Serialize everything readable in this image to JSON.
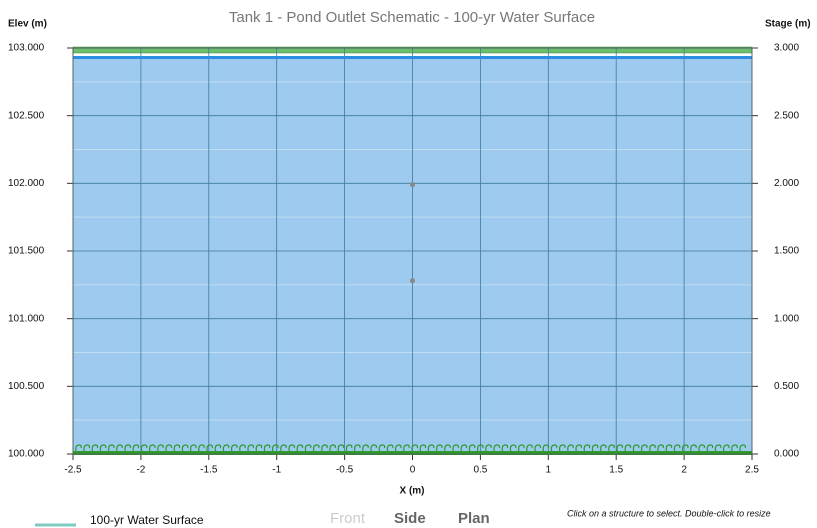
{
  "chart_data": {
    "type": "schematic",
    "title": "Tank 1 - Pond Outlet Schematic - 100-yr Water Surface",
    "ylabel": "Elev (m)",
    "y2label": "Stage (m)",
    "xlabel": "X (m)",
    "xlim": [
      -2.5,
      2.5
    ],
    "xticks": [
      -2.5,
      -2,
      -1.5,
      -1,
      -0.5,
      0,
      0.5,
      1,
      1.5,
      2,
      2.5
    ],
    "ylim": [
      100,
      103
    ],
    "yticks": [
      {
        "value": 100,
        "label": "100.000"
      },
      {
        "value": 100.5,
        "label": "100.500"
      },
      {
        "value": 101,
        "label": "101.000"
      },
      {
        "value": 101.5,
        "label": "101.500"
      },
      {
        "value": 102,
        "label": "102.000"
      },
      {
        "value": 102.5,
        "label": "102.500"
      },
      {
        "value": 103,
        "label": "103.000"
      }
    ],
    "y_minor_ticks": [
      100.25,
      100.75,
      101.25,
      101.75,
      102.25,
      102.75
    ],
    "y2lim": [
      0,
      3
    ],
    "y2ticks": [
      {
        "value": 0,
        "label": "0.000"
      },
      {
        "value": 0.5,
        "label": "0.500"
      },
      {
        "value": 1,
        "label": "1.000"
      },
      {
        "value": 1.5,
        "label": "1.500"
      },
      {
        "value": 2,
        "label": "2.000"
      },
      {
        "value": 2.5,
        "label": "2.500"
      },
      {
        "value": 3,
        "label": "3.000"
      }
    ],
    "series": [
      {
        "name": "100-yr Water Surface",
        "color": "#2b8ee0",
        "fill": "#9dcaee",
        "values": [
          102.93
        ]
      }
    ],
    "points": {
      "color": "#888888",
      "x": [
        0,
        0
      ],
      "y": [
        101.99,
        101.28
      ]
    },
    "grid": true
  },
  "controls": {
    "views": [
      "Front",
      "Side",
      "Plan"
    ],
    "hint": "Click on a structure to select. Double-click to resize"
  }
}
